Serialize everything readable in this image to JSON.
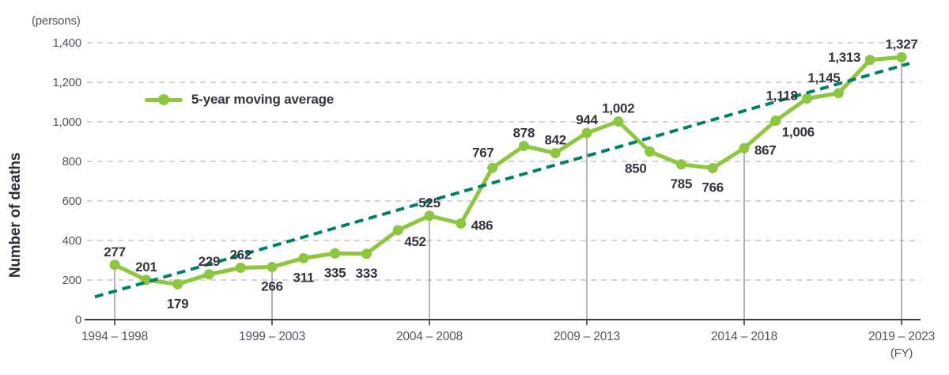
{
  "chart_data": {
    "type": "line",
    "unit_label": "(persons)",
    "ylabel": "Number of deaths",
    "fy_label": "(FY)",
    "legend": {
      "label": "5-year moving average",
      "position": "top-left"
    },
    "grid": "horizontal-dashed",
    "y_axis": {
      "min": 0,
      "max": 1400,
      "step": 200,
      "tick_labels": [
        "0",
        "200",
        "400",
        "600",
        "800",
        "1,000",
        "1,200",
        "1,400"
      ]
    },
    "x_ticks": [
      {
        "index": 0,
        "label": "1994 – 1998"
      },
      {
        "index": 5,
        "label": "1999 – 2003"
      },
      {
        "index": 10,
        "label": "2004 – 2008"
      },
      {
        "index": 15,
        "label": "2009 – 2013"
      },
      {
        "index": 20,
        "label": "2014 – 2018"
      },
      {
        "index": 25,
        "label": "2019 – 2023"
      }
    ],
    "points": [
      {
        "value": 277,
        "label": "277",
        "label_pos": "above"
      },
      {
        "value": 201,
        "label": "201",
        "label_pos": "above"
      },
      {
        "value": 179,
        "label": "179",
        "label_pos": "below"
      },
      {
        "value": 229,
        "label": "229",
        "label_pos": "above"
      },
      {
        "value": 262,
        "label": "262",
        "label_pos": "above"
      },
      {
        "value": 266,
        "label": "266",
        "label_pos": "below"
      },
      {
        "value": 311,
        "label": "311",
        "label_pos": "below"
      },
      {
        "value": 335,
        "label": "335",
        "label_pos": "below"
      },
      {
        "value": 333,
        "label": "333",
        "label_pos": "below"
      },
      {
        "value": 452,
        "label": "452",
        "label_pos": "below-right"
      },
      {
        "value": 525,
        "label": "525",
        "label_pos": "above"
      },
      {
        "value": 486,
        "label": "486",
        "label_pos": "right"
      },
      {
        "value": 767,
        "label": "767",
        "label_pos": "above-left"
      },
      {
        "value": 878,
        "label": "878",
        "label_pos": "above"
      },
      {
        "value": 842,
        "label": "842",
        "label_pos": "above"
      },
      {
        "value": 944,
        "label": "944",
        "label_pos": "above"
      },
      {
        "value": 1002,
        "label": "1,002",
        "label_pos": "above"
      },
      {
        "value": 850,
        "label": "850",
        "label_pos": "below-left"
      },
      {
        "value": 785,
        "label": "785",
        "label_pos": "below"
      },
      {
        "value": 766,
        "label": "766",
        "label_pos": "below"
      },
      {
        "value": 867,
        "label": "867",
        "label_pos": "right"
      },
      {
        "value": 1006,
        "label": "1,006",
        "label_pos": "below-right"
      },
      {
        "value": 1118,
        "label": "1,118",
        "label_pos": "left"
      },
      {
        "value": 1145,
        "label": "1,145",
        "label_pos": "above-left"
      },
      {
        "value": 1313,
        "label": "1,313",
        "label_pos": "left"
      },
      {
        "value": 1327,
        "label": "1,327",
        "label_pos": "above"
      }
    ],
    "trend_line": {
      "style": "dashed",
      "start": {
        "index": -0.63,
        "value": 115
      },
      "end": {
        "index": 25.25,
        "value": 1295
      }
    },
    "colors": {
      "series": "#8dc63f",
      "trend": "#00806b",
      "grid": "#c6c6c6",
      "axis": "#3e3e3e",
      "ref_line": "#8c8c8c",
      "value_text": "#34343f",
      "tick_text": "#54545e"
    }
  }
}
